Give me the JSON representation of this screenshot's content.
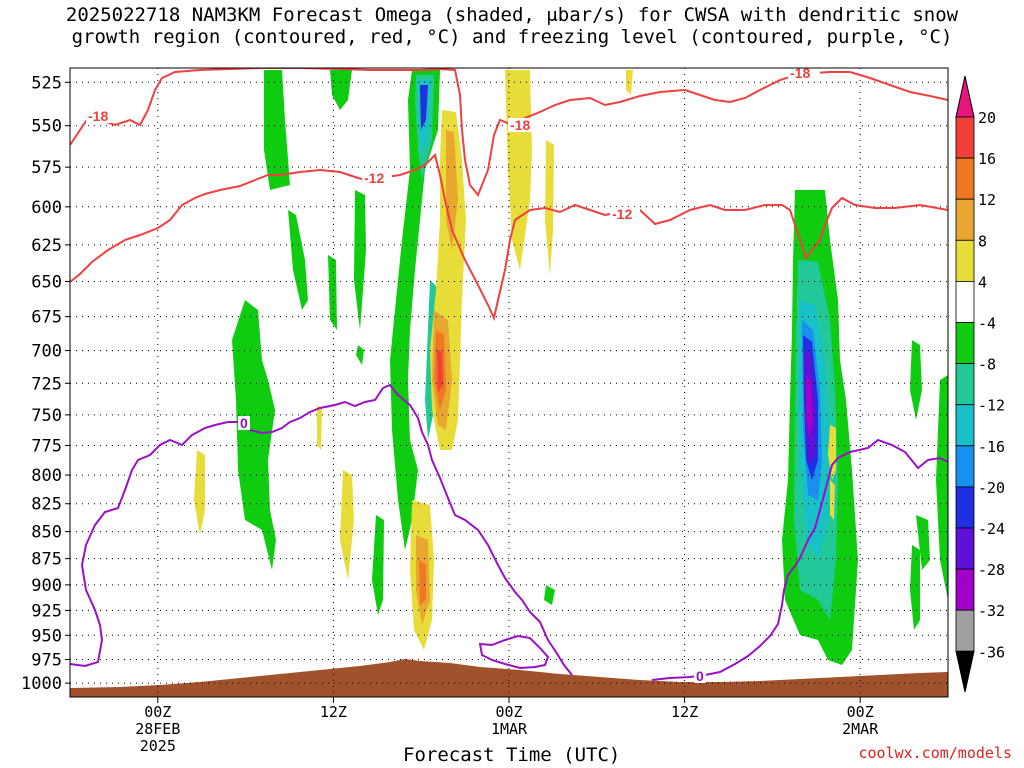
{
  "title_line1": "2025022718 NAM3KM Forecast Omega (shaded, μbar/s) for CWSA with dendritic snow",
  "title_line2": "growth region (contoured, red, °C) and freezing level (contoured, purple, °C)",
  "watermark": "coolwx.com/models",
  "chart_data": {
    "type": "heatmap",
    "xlabel": "Forecast Time (UTC)",
    "ylabel": "",
    "x_ticks": [
      {
        "hour": 6,
        "label": [
          "00Z",
          "28FEB",
          "2025"
        ]
      },
      {
        "hour": 18,
        "label": [
          "12Z"
        ]
      },
      {
        "hour": 30,
        "label": [
          "00Z",
          "1MAR"
        ]
      },
      {
        "hour": 42,
        "label": [
          "12Z"
        ]
      },
      {
        "hour": 54,
        "label": [
          "00Z",
          "2MAR"
        ]
      }
    ],
    "xlim": [
      0,
      60
    ],
    "y_ticks": [
      525,
      550,
      575,
      600,
      625,
      650,
      675,
      700,
      725,
      750,
      775,
      800,
      825,
      850,
      875,
      900,
      925,
      950,
      975,
      1000
    ],
    "ylim_hpa": [
      1015,
      517
    ],
    "grid": true,
    "colorbar": {
      "levels": [
        -36,
        -32,
        -28,
        -24,
        -20,
        -16,
        -12,
        -8,
        -4,
        4,
        8,
        12,
        16,
        20
      ],
      "labels": [
        "20",
        "16",
        "12",
        "8",
        "4",
        "-4",
        "-8",
        "-12",
        "-16",
        "-20",
        "-24",
        "-28",
        "-32",
        "-36"
      ],
      "colors": {
        "gt20": "#e8157f",
        "16_20": "#f0403a",
        "12_16": "#f07822",
        "8_12": "#e8a830",
        "4_8": "#e8dc38",
        "m4_4": "#ffffff",
        "m8_m4": "#10cc10",
        "m12_m8": "#22c898",
        "m16_m12": "#18c0c8",
        "m20_m16": "#1890f0",
        "m24_m20": "#2030e0",
        "m28_m24": "#6010d8",
        "m32_m28": "#a000c8",
        "m36_m32": "#a0a0a0",
        "lt36": "#000000"
      }
    },
    "contour_labels": {
      "red": [
        "-18",
        "-18",
        "-18",
        "-12",
        "-12"
      ],
      "purple": [
        "0",
        "0"
      ]
    },
    "red_contour_color": "#f04040",
    "purple_contour_color": "#9a10c8",
    "terrain_color": "#a0522d"
  }
}
